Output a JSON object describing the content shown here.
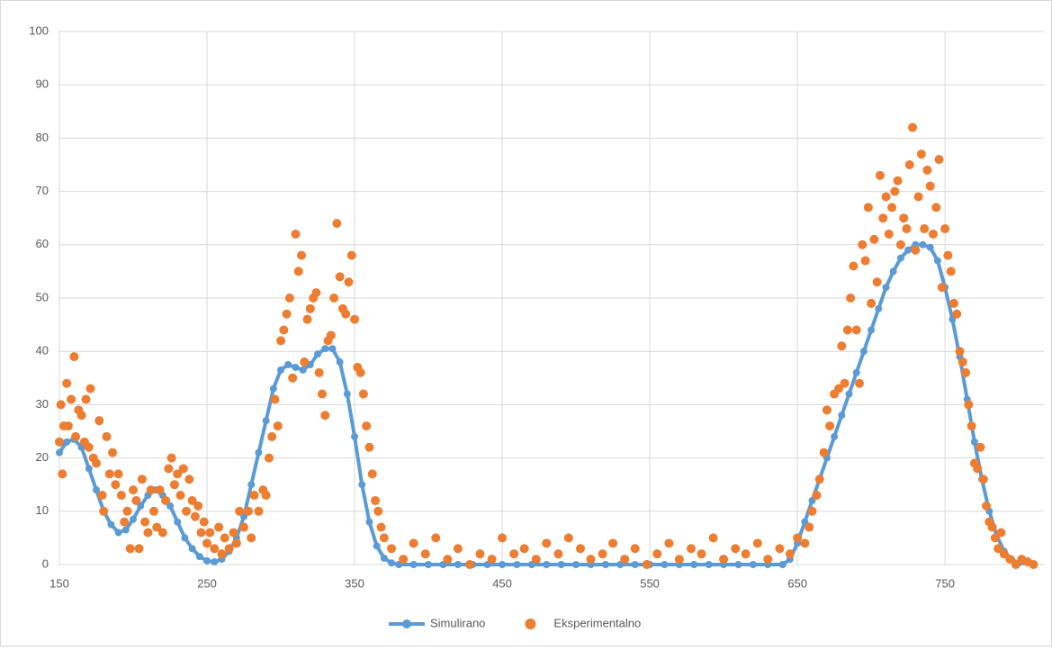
{
  "chart_data": {
    "type": "scatter",
    "xlim": [
      150,
      817
    ],
    "xticks": [
      150,
      250,
      350,
      450,
      550,
      650,
      750
    ],
    "ylim": [
      0,
      100
    ],
    "yticks": [
      0,
      10,
      20,
      30,
      40,
      50,
      60,
      70,
      80,
      90,
      100
    ],
    "grid": true,
    "legend": "bottom",
    "series": [
      {
        "name": "Simulirano",
        "color": "#5b9bd5",
        "line": true,
        "x": [
          150,
          155,
          160,
          165,
          170,
          175,
          180,
          185,
          190,
          195,
          200,
          205,
          210,
          215,
          220,
          225,
          230,
          235,
          240,
          245,
          250,
          255,
          260,
          265,
          270,
          275,
          280,
          285,
          290,
          295,
          300,
          305,
          310,
          315,
          320,
          325,
          330,
          335,
          340,
          345,
          350,
          355,
          360,
          365,
          370,
          375,
          380,
          390,
          400,
          410,
          420,
          430,
          440,
          450,
          460,
          470,
          480,
          490,
          500,
          510,
          520,
          530,
          540,
          550,
          560,
          570,
          580,
          590,
          600,
          610,
          620,
          630,
          640,
          645,
          650,
          655,
          660,
          665,
          670,
          675,
          680,
          685,
          690,
          695,
          700,
          705,
          710,
          715,
          720,
          725,
          730,
          735,
          740,
          745,
          750,
          755,
          760,
          765,
          770,
          775,
          780,
          785,
          790,
          795,
          800,
          810
        ],
        "values": [
          21,
          23,
          23.5,
          22,
          18,
          14,
          10,
          7.5,
          6,
          6.5,
          8.5,
          11,
          13,
          14,
          13,
          11,
          8,
          5,
          3,
          1.5,
          0.7,
          0.5,
          1,
          2.5,
          5,
          9,
          15,
          21,
          27,
          33,
          36.5,
          37.5,
          37,
          36.5,
          37.5,
          39.5,
          40.5,
          40.5,
          38,
          32,
          24,
          15,
          8,
          3.5,
          1.2,
          0.3,
          0,
          0,
          0,
          0,
          0,
          0,
          0,
          0,
          0,
          0,
          0,
          0,
          0,
          0,
          0,
          0,
          0,
          0,
          0,
          0,
          0,
          0,
          0,
          0,
          0,
          0,
          0,
          1,
          4,
          8,
          12,
          16,
          20,
          24,
          28,
          32,
          36,
          40,
          44,
          48,
          52,
          55,
          57.5,
          59,
          60,
          60,
          59.5,
          57,
          52,
          46,
          39,
          31,
          23,
          16,
          10,
          5.5,
          2.5,
          1,
          0.3,
          0
        ]
      },
      {
        "name": "Eksperimentalno",
        "color": "#ed7d31",
        "x": [
          150,
          151,
          152,
          153,
          155,
          156,
          158,
          160,
          161,
          163,
          165,
          167,
          168,
          170,
          171,
          173,
          175,
          177,
          179,
          180,
          182,
          184,
          186,
          188,
          190,
          192,
          194,
          196,
          198,
          200,
          202,
          204,
          206,
          208,
          210,
          212,
          214,
          216,
          218,
          220,
          222,
          224,
          226,
          228,
          230,
          232,
          234,
          236,
          238,
          240,
          242,
          244,
          246,
          248,
          250,
          252,
          255,
          258,
          260,
          262,
          265,
          268,
          270,
          272,
          275,
          278,
          280,
          282,
          285,
          288,
          290,
          292,
          294,
          296,
          298,
          300,
          302,
          304,
          306,
          308,
          310,
          312,
          314,
          316,
          318,
          320,
          322,
          324,
          326,
          328,
          330,
          332,
          334,
          336,
          338,
          340,
          342,
          344,
          346,
          348,
          350,
          352,
          354,
          356,
          358,
          360,
          362,
          364,
          366,
          368,
          370,
          375,
          383,
          390,
          398,
          405,
          413,
          420,
          428,
          435,
          443,
          450,
          458,
          465,
          473,
          480,
          488,
          495,
          503,
          510,
          518,
          525,
          533,
          540,
          548,
          555,
          563,
          570,
          578,
          585,
          593,
          600,
          608,
          615,
          623,
          630,
          638,
          645,
          650,
          655,
          658,
          660,
          663,
          665,
          668,
          670,
          672,
          675,
          678,
          680,
          682,
          684,
          686,
          688,
          690,
          692,
          694,
          696,
          698,
          700,
          702,
          704,
          706,
          708,
          710,
          712,
          714,
          716,
          718,
          720,
          722,
          724,
          726,
          728,
          730,
          732,
          734,
          736,
          738,
          740,
          742,
          744,
          746,
          748,
          750,
          752,
          754,
          756,
          758,
          760,
          762,
          764,
          766,
          768,
          770,
          772,
          774,
          776,
          778,
          780,
          782,
          784,
          786,
          788,
          790,
          794,
          798,
          802,
          806,
          810
        ],
        "values": [
          23,
          30,
          17,
          26,
          34,
          26,
          31,
          39,
          24,
          29,
          28,
          23,
          31,
          22,
          33,
          20,
          19,
          27,
          13,
          10,
          24,
          17,
          21,
          15,
          17,
          13,
          8,
          10,
          3,
          14,
          12,
          3,
          16,
          8,
          6,
          14,
          10,
          7,
          14,
          6,
          12,
          18,
          20,
          15,
          17,
          13,
          18,
          10,
          16,
          12,
          9,
          11,
          6,
          8,
          4,
          6,
          3,
          7,
          2,
          5,
          3,
          6,
          4,
          10,
          7,
          10,
          5,
          13,
          10,
          14,
          13,
          20,
          24,
          31,
          26,
          42,
          44,
          47,
          50,
          35,
          62,
          55,
          58,
          38,
          46,
          48,
          50,
          51,
          36,
          32,
          28,
          42,
          43,
          50,
          64,
          54,
          48,
          47,
          53,
          58,
          46,
          37,
          36,
          32,
          26,
          22,
          17,
          12,
          10,
          7,
          5,
          3,
          1,
          4,
          2,
          5,
          1,
          3,
          0,
          2,
          1,
          5,
          2,
          3,
          1,
          4,
          2,
          5,
          3,
          1,
          2,
          4,
          1,
          3,
          0,
          2,
          4,
          1,
          3,
          2,
          5,
          1,
          3,
          2,
          4,
          1,
          3,
          2,
          5,
          4,
          7,
          10,
          13,
          16,
          21,
          29,
          26,
          32,
          33,
          41,
          34,
          44,
          50,
          56,
          44,
          34,
          60,
          57,
          67,
          49,
          61,
          53,
          73,
          65,
          69,
          62,
          67,
          70,
          72,
          60,
          65,
          63,
          75,
          82,
          59,
          69,
          77,
          63,
          74,
          71,
          62,
          67,
          76,
          52,
          63,
          58,
          55,
          49,
          47,
          40,
          38,
          36,
          30,
          26,
          19,
          18,
          22,
          16,
          11,
          8,
          7,
          5,
          3,
          6,
          2,
          1,
          0,
          1,
          0.5,
          0
        ]
      }
    ]
  }
}
